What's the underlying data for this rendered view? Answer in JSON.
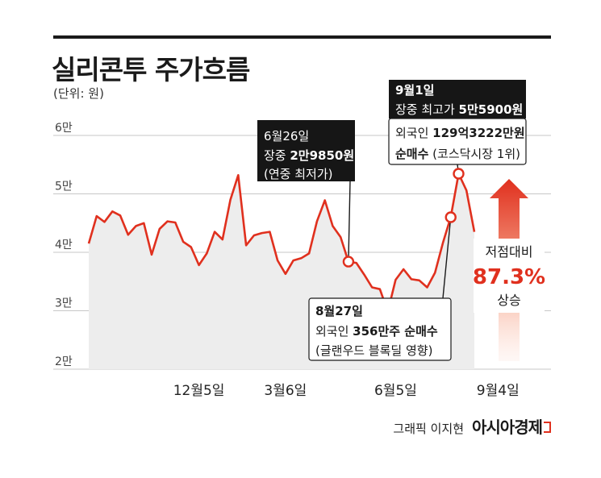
{
  "header": {
    "title": "실리콘투 주가흐름",
    "unit": "(단위: 원)"
  },
  "credit": {
    "artist": "그래픽 이지현",
    "brand": "아시아경제"
  },
  "colors": {
    "line": "#e0301e",
    "area": "#ededed",
    "grid": "#c7c7c7",
    "callout_bg": "#161616",
    "accent": "#e0301e"
  },
  "chart_data": {
    "type": "line",
    "title": "실리콘투 주가흐름",
    "ylabel": "(단위: 원)",
    "ylim": [
      20000,
      60000
    ],
    "yticks": [
      {
        "value": 20000,
        "label": "2만"
      },
      {
        "value": 30000,
        "label": "3만"
      },
      {
        "value": 40000,
        "label": "4만"
      },
      {
        "value": 50000,
        "label": "5만"
      },
      {
        "value": 60000,
        "label": "6만"
      }
    ],
    "xticks": [
      {
        "index": 14,
        "label": "12월5일"
      },
      {
        "index": 25,
        "label": "3월6일"
      },
      {
        "index": 39,
        "label": "6월5일"
      },
      {
        "index": 52,
        "label": "9월4일"
      }
    ],
    "grid": true,
    "series": [
      {
        "values": [
          41500,
          46200,
          45200,
          47000,
          46300,
          43000,
          44500,
          45000,
          39600,
          44000,
          45300,
          45100,
          41800,
          40900,
          37800,
          39800,
          43500,
          42200,
          49000,
          53200,
          41200,
          42900,
          43300,
          43500,
          38600,
          36300,
          38600,
          39000,
          39800,
          45300,
          48900,
          44500,
          42600,
          38400,
          38200,
          36200,
          34000,
          33700,
          29850,
          35300,
          37100,
          35400,
          35200,
          34000,
          36500,
          41600,
          46000,
          53450,
          50600,
          43500
        ]
      }
    ],
    "annotations": [
      {
        "index": 33,
        "value": 38400,
        "lines": [
          {
            "text": "6월26일"
          },
          {
            "text": "장중 ",
            "bold": "2만9850원"
          },
          {
            "text": "(연중 최저가)"
          }
        ]
      },
      {
        "index": 46,
        "value": 46000,
        "lines": [
          {
            "text": "",
            "bold": "8월27일"
          },
          {
            "text": "외국인 ",
            "bold": "356만주 순매수"
          },
          {
            "text": "(글랜우드 블록딜 영향)"
          }
        ]
      },
      {
        "index": 47,
        "value": 53450,
        "lines": [
          {
            "text": "",
            "bold": "9월1일"
          },
          {
            "text": "장중 최고가 ",
            "bold": "5만5900원"
          }
        ]
      },
      {
        "index": 47,
        "value": 53450,
        "lines": [
          {
            "text": "외국인 ",
            "bold": "129억3222만원"
          },
          {
            "text": "",
            "bold": "순매수",
            "after": " (코스닥시장 1위)"
          }
        ]
      }
    ],
    "highlight": {
      "label_top": "저점대비",
      "value": "87.3%",
      "label_bottom": "상승"
    }
  }
}
